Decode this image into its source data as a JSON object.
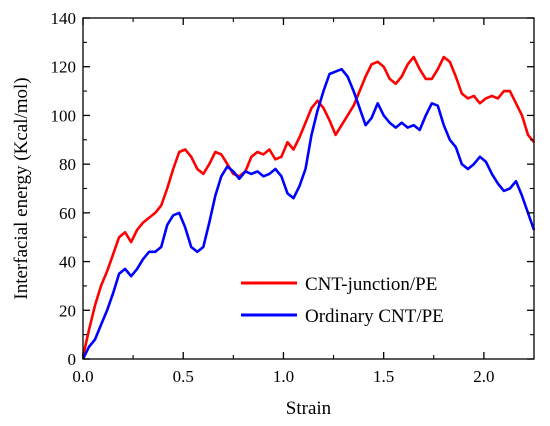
{
  "chart_data": {
    "type": "line",
    "title": "",
    "xlabel": "Strain",
    "ylabel": "Interfacial energy (Kcal/mol)",
    "xlim": [
      0.0,
      2.25
    ],
    "ylim": [
      0,
      140
    ],
    "xticks": [
      "0.0",
      "0.5",
      "1.0",
      "1.5",
      "2.0"
    ],
    "xtick_values": [
      0.0,
      0.5,
      1.0,
      1.5,
      2.0
    ],
    "yticks": [
      "0",
      "20",
      "40",
      "60",
      "80",
      "100",
      "120",
      "140"
    ],
    "ytick_values": [
      0,
      20,
      40,
      60,
      80,
      100,
      120,
      140
    ],
    "grid": false,
    "legend_position": "bottom-right",
    "series": [
      {
        "name": "CNT-junction/PE",
        "color": "#ff0000",
        "x": [
          0.0,
          0.03,
          0.06,
          0.09,
          0.12,
          0.15,
          0.18,
          0.21,
          0.24,
          0.27,
          0.3,
          0.33,
          0.36,
          0.39,
          0.42,
          0.45,
          0.48,
          0.51,
          0.54,
          0.57,
          0.6,
          0.63,
          0.66,
          0.69,
          0.72,
          0.75,
          0.78,
          0.81,
          0.84,
          0.87,
          0.9,
          0.93,
          0.96,
          0.99,
          1.02,
          1.05,
          1.08,
          1.11,
          1.14,
          1.17,
          1.2,
          1.23,
          1.26,
          1.29,
          1.32,
          1.35,
          1.38,
          1.41,
          1.44,
          1.47,
          1.5,
          1.53,
          1.56,
          1.59,
          1.62,
          1.65,
          1.68,
          1.71,
          1.74,
          1.77,
          1.8,
          1.83,
          1.86,
          1.89,
          1.92,
          1.95,
          1.98,
          2.01,
          2.04,
          2.07,
          2.1,
          2.13,
          2.16,
          2.19,
          2.22,
          2.25
        ],
        "y": [
          1,
          12,
          22,
          30,
          36,
          43,
          50,
          52,
          48,
          53,
          56,
          58,
          60,
          63,
          70,
          78,
          85,
          86,
          83,
          78,
          76,
          80,
          85,
          84,
          80,
          76,
          75,
          77,
          83,
          85,
          84,
          86,
          82,
          83,
          89,
          86,
          91,
          97,
          103,
          106,
          103,
          98,
          92,
          96,
          100,
          104,
          110,
          116,
          121,
          122,
          120,
          115,
          113,
          116,
          121,
          124,
          119,
          115,
          115,
          119,
          124,
          122,
          116,
          109,
          107,
          108,
          105,
          107,
          108,
          107,
          110,
          110,
          105,
          100,
          92,
          89
        ]
      },
      {
        "name": "Ordinary CNT/PE",
        "color": "#0000ff",
        "x": [
          0.0,
          0.03,
          0.06,
          0.09,
          0.12,
          0.15,
          0.18,
          0.21,
          0.24,
          0.27,
          0.3,
          0.33,
          0.36,
          0.39,
          0.42,
          0.45,
          0.48,
          0.51,
          0.54,
          0.57,
          0.6,
          0.63,
          0.66,
          0.69,
          0.72,
          0.75,
          0.78,
          0.81,
          0.84,
          0.87,
          0.9,
          0.93,
          0.96,
          0.99,
          1.02,
          1.05,
          1.08,
          1.11,
          1.14,
          1.17,
          1.2,
          1.23,
          1.26,
          1.29,
          1.32,
          1.35,
          1.38,
          1.41,
          1.44,
          1.47,
          1.5,
          1.53,
          1.56,
          1.59,
          1.62,
          1.65,
          1.68,
          1.71,
          1.74,
          1.77,
          1.8,
          1.83,
          1.86,
          1.89,
          1.92,
          1.95,
          1.98,
          2.01,
          2.04,
          2.07,
          2.1,
          2.13,
          2.16,
          2.19,
          2.22,
          2.25
        ],
        "y": [
          0,
          5,
          8,
          14,
          20,
          27,
          35,
          37,
          34,
          37,
          41,
          44,
          44,
          46,
          55,
          59,
          60,
          54,
          46,
          44,
          46,
          56,
          67,
          75,
          79,
          77,
          74,
          77,
          76,
          77,
          75,
          76,
          78,
          75,
          68,
          66,
          71,
          78,
          92,
          102,
          110,
          117,
          118,
          119,
          116,
          110,
          103,
          96,
          99,
          105,
          100,
          97,
          95,
          97,
          95,
          96,
          94,
          100,
          105,
          104,
          96,
          90,
          87,
          80,
          78,
          80,
          83,
          81,
          76,
          72,
          69,
          70,
          73,
          67,
          60,
          53
        ]
      }
    ]
  }
}
